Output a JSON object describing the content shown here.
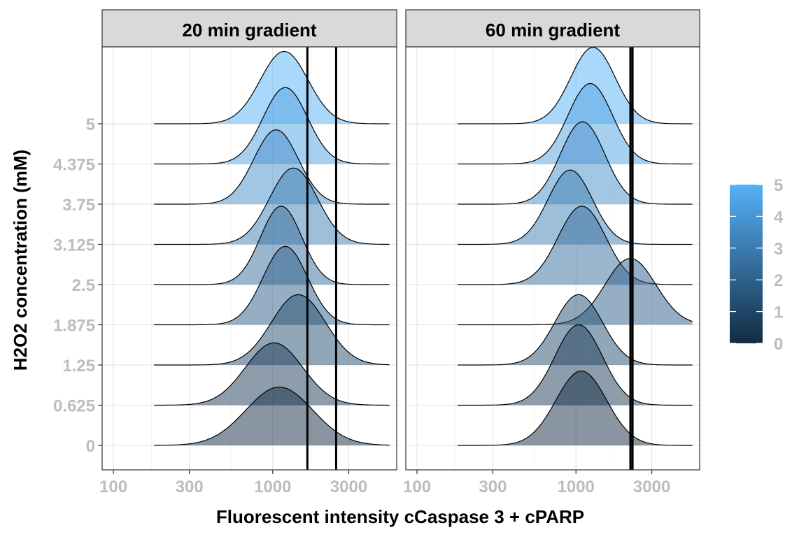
{
  "chart_data": {
    "type": "ridgeline",
    "xlabel": "Fluorescent intensity cCaspase 3 + cPARP",
    "ylabel": "H2O2 concentration (mM)",
    "x_scale": "log10",
    "xlim": [
      85,
      6000
    ],
    "x_ticks": [
      100,
      300,
      1000,
      3000
    ],
    "x_tick_labels": [
      "100",
      "300",
      "1000",
      "3000"
    ],
    "y_categories": [
      "0",
      "0.625",
      "1.25",
      "1.875",
      "2.5",
      "3.125",
      "3.75",
      "4.375",
      "5"
    ],
    "grid": true,
    "legend": {
      "position": "right",
      "type": "colorbar",
      "min": 0,
      "max": 5,
      "ticks": [
        0,
        1,
        2,
        3,
        4,
        5
      ],
      "tick_labels": [
        "0",
        "1",
        "2",
        "3",
        "4",
        "5"
      ],
      "color_low": "#132B43",
      "color_high": "#56B1F7"
    },
    "panels": [
      {
        "title": "20 min gradient",
        "vlines": [
          1650,
          2500
        ],
        "series": [
          {
            "category": "0",
            "peak": 1100,
            "log_sd": 0.21,
            "height": 1.45
          },
          {
            "category": "0.625",
            "peak": 1020,
            "log_sd": 0.18,
            "height": 1.55
          },
          {
            "category": "1.25",
            "peak": 1450,
            "log_sd": 0.17,
            "height": 1.75
          },
          {
            "category": "1.875",
            "peak": 1200,
            "log_sd": 0.14,
            "height": 1.95
          },
          {
            "category": "2.5",
            "peak": 1130,
            "log_sd": 0.13,
            "height": 1.95
          },
          {
            "category": "3.125",
            "peak": 1350,
            "log_sd": 0.15,
            "height": 1.9
          },
          {
            "category": "3.75",
            "peak": 1050,
            "log_sd": 0.14,
            "height": 1.85
          },
          {
            "category": "4.375",
            "peak": 1200,
            "log_sd": 0.14,
            "height": 1.9
          },
          {
            "category": "5",
            "peak": 1180,
            "log_sd": 0.15,
            "height": 1.8
          }
        ]
      },
      {
        "title": "60 min gradient",
        "vlines": [
          2200,
          2270
        ],
        "series": [
          {
            "category": "0",
            "peak": 1080,
            "log_sd": 0.16,
            "height": 1.85
          },
          {
            "category": "0.625",
            "peak": 1040,
            "log_sd": 0.15,
            "height": 2.0
          },
          {
            "category": "1.25",
            "peak": 1040,
            "log_sd": 0.15,
            "height": 1.75
          },
          {
            "category": "1.875",
            "peak": 2200,
            "log_sd": 0.16,
            "height": 1.65
          },
          {
            "category": "2.5",
            "peak": 1090,
            "log_sd": 0.15,
            "height": 1.95
          },
          {
            "category": "3.125",
            "peak": 920,
            "log_sd": 0.14,
            "height": 1.85
          },
          {
            "category": "3.75",
            "peak": 1100,
            "log_sd": 0.14,
            "height": 2.05
          },
          {
            "category": "4.375",
            "peak": 1230,
            "log_sd": 0.14,
            "height": 2.0
          },
          {
            "category": "5",
            "peak": 1280,
            "log_sd": 0.14,
            "height": 1.9
          }
        ]
      }
    ]
  }
}
